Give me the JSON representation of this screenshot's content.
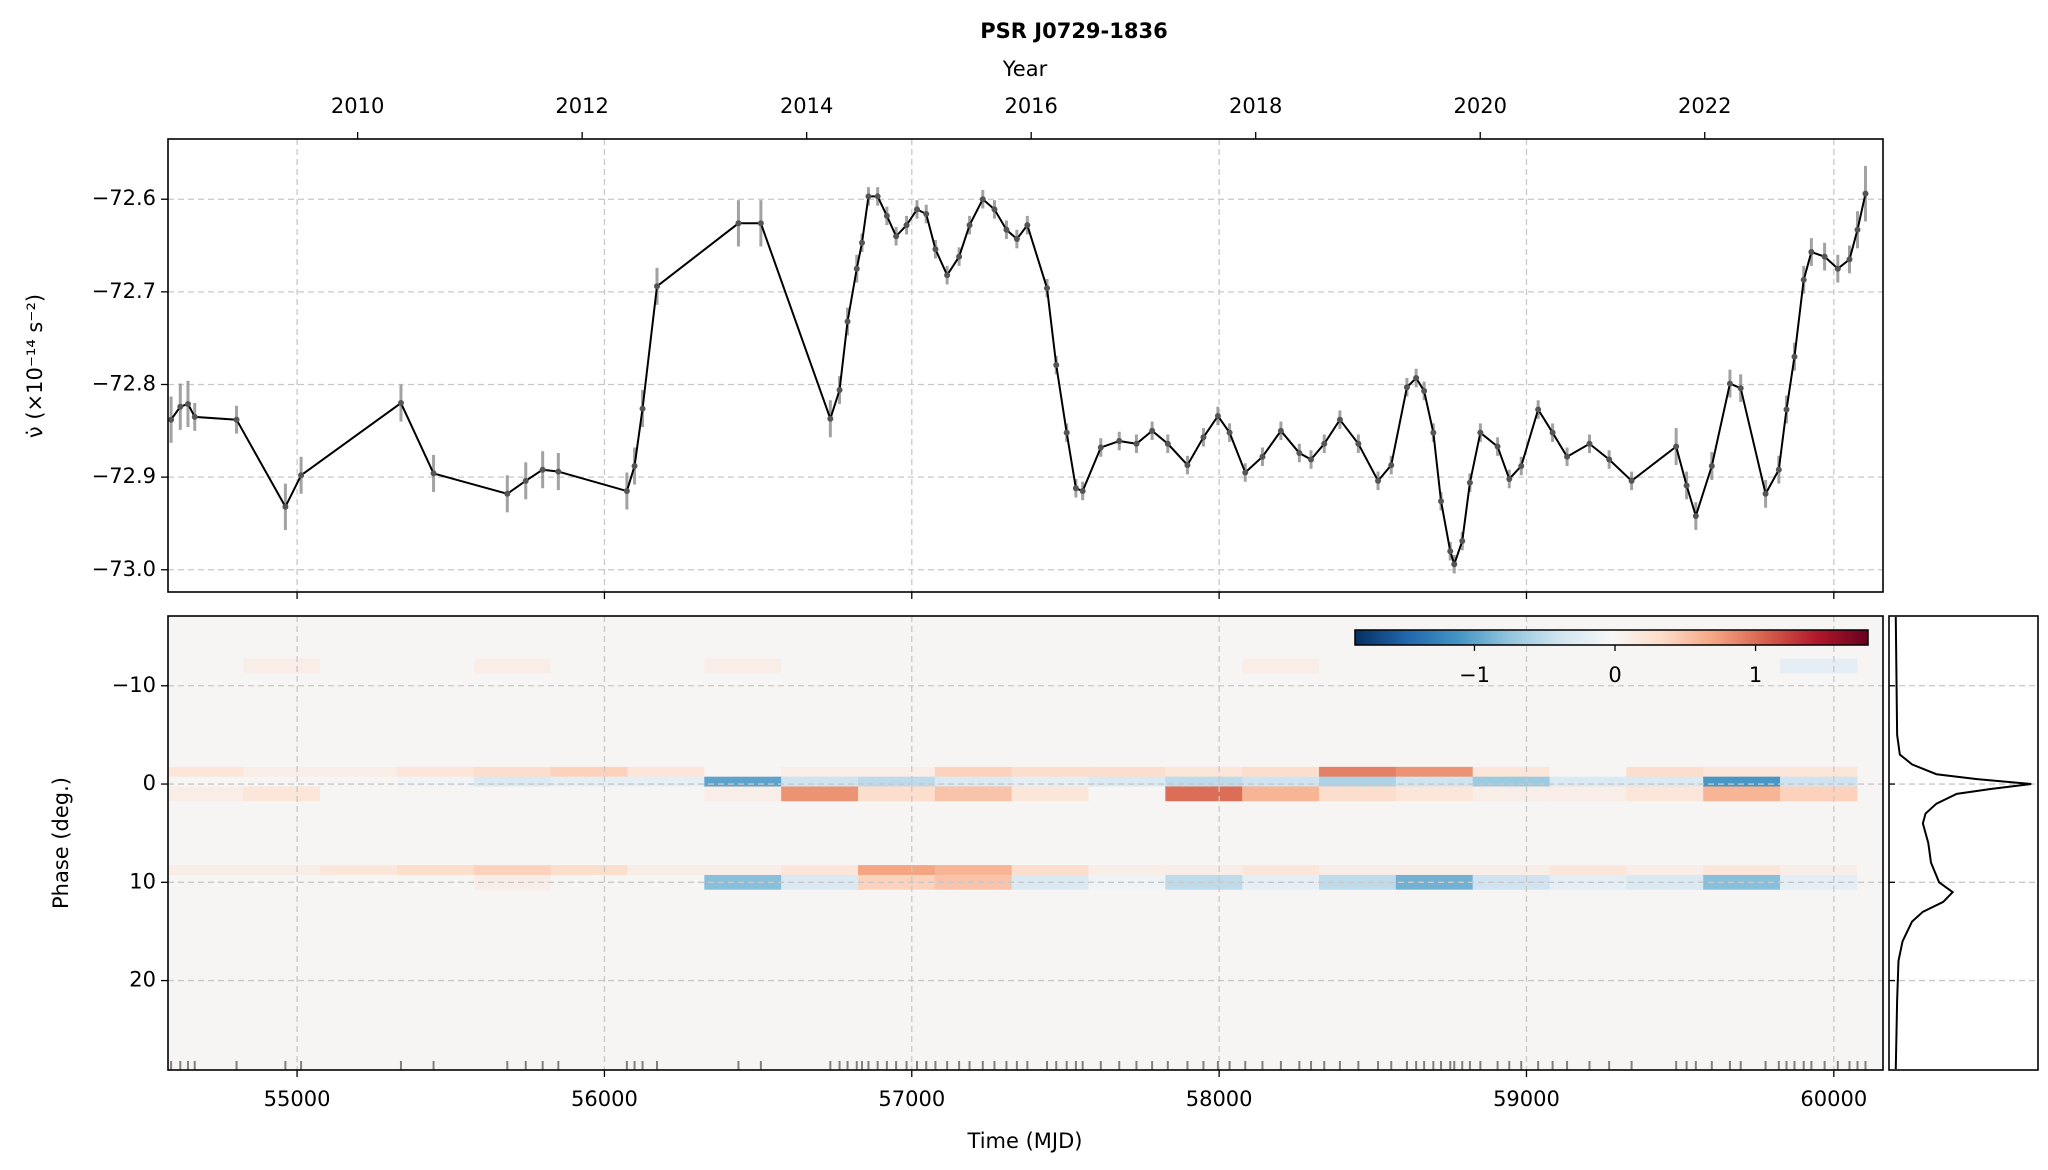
{
  "chart_data": {
    "type": "line",
    "title": "PSR J0729-1836",
    "top_axis_label": "Year",
    "top_ticks": [
      2010,
      2012,
      2014,
      2016,
      2018,
      2020,
      2022
    ],
    "xlabel": "Time (MJD)",
    "ylabel": "ν̇ (×10⁻¹⁴ s⁻²)",
    "xlim": [
      54580,
      60160
    ],
    "xticks": [
      55000,
      56000,
      57000,
      58000,
      59000,
      60000
    ],
    "ylim": [
      -73.024,
      -72.535
    ],
    "yticks": [
      {
        "value": -73.0,
        "label": "−73.0"
      },
      {
        "value": -72.9,
        "label": "−72.9"
      },
      {
        "value": -72.8,
        "label": "−72.8"
      },
      {
        "value": -72.7,
        "label": "−72.7"
      },
      {
        "value": -72.6,
        "label": "−72.6"
      }
    ],
    "grid": true,
    "color": "#000000",
    "errorbar_color": "#8c8c8c",
    "x": [
      54590,
      54620,
      54645,
      54667,
      54803,
      54962,
      55013,
      55338,
      55444,
      55684,
      55744,
      55799,
      55850,
      56073,
      56098,
      56124,
      56171,
      56436,
      56509,
      56735,
      56765,
      56791,
      56821,
      56838,
      56859,
      56889,
      56919,
      56949,
      56983,
      57017,
      57047,
      57077,
      57115,
      57154,
      57188,
      57231,
      57269,
      57308,
      57342,
      57376,
      57440,
      57470,
      57504,
      57534,
      57556,
      57615,
      57675,
      57731,
      57782,
      57833,
      57897,
      57949,
      57996,
      58034,
      58085,
      58141,
      58201,
      58261,
      58299,
      58342,
      58393,
      58453,
      58517,
      58560,
      58611,
      58641,
      58667,
      58697,
      58722,
      58752,
      58765,
      58791,
      58816,
      58850,
      58906,
      58944,
      58983,
      59038,
      59085,
      59132,
      59205,
      59269,
      59342,
      59487,
      59521,
      59551,
      59603,
      59662,
      59697,
      59778,
      59821,
      59846,
      59872,
      59902,
      59927,
      59970,
      60013,
      60051,
      60077,
      60103
    ],
    "values": [
      -72.838,
      -72.824,
      -72.821,
      -72.835,
      -72.838,
      -72.932,
      -72.898,
      -72.82,
      -72.896,
      -72.918,
      -72.904,
      -72.892,
      -72.894,
      -72.915,
      -72.888,
      -72.826,
      -72.694,
      -72.626,
      -72.626,
      -72.837,
      -72.806,
      -72.732,
      -72.675,
      -72.647,
      -72.597,
      -72.597,
      -72.618,
      -72.64,
      -72.628,
      -72.611,
      -72.616,
      -72.654,
      -72.682,
      -72.662,
      -72.628,
      -72.6,
      -72.611,
      -72.633,
      -72.643,
      -72.628,
      -72.696,
      -72.779,
      -72.852,
      -72.912,
      -72.915,
      -72.868,
      -72.861,
      -72.864,
      -72.85,
      -72.864,
      -72.887,
      -72.857,
      -72.834,
      -72.852,
      -72.895,
      -72.878,
      -72.85,
      -72.874,
      -72.881,
      -72.864,
      -72.838,
      -72.864,
      -72.904,
      -72.887,
      -72.803,
      -72.793,
      -72.807,
      -72.852,
      -72.926,
      -72.98,
      -72.994,
      -72.969,
      -72.906,
      -72.852,
      -72.867,
      -72.902,
      -72.888,
      -72.827,
      -72.852,
      -72.878,
      -72.864,
      -72.881,
      -72.904,
      -72.867,
      -72.909,
      -72.942,
      -72.888,
      -72.799,
      -72.804,
      -72.918,
      -72.892,
      -72.827,
      -72.77,
      -72.687,
      -72.657,
      -72.662,
      -72.675,
      -72.665,
      -72.633,
      -72.594
    ],
    "errors": [
      0.025,
      0.025,
      0.025,
      0.015,
      0.015,
      0.025,
      0.02,
      0.02,
      0.02,
      0.02,
      0.02,
      0.02,
      0.02,
      0.02,
      0.02,
      0.02,
      0.02,
      0.025,
      0.025,
      0.02,
      0.015,
      0.015,
      0.015,
      0.01,
      0.01,
      0.01,
      0.01,
      0.01,
      0.01,
      0.01,
      0.01,
      0.01,
      0.01,
      0.01,
      0.01,
      0.01,
      0.01,
      0.01,
      0.01,
      0.01,
      0.01,
      0.01,
      0.01,
      0.01,
      0.01,
      0.01,
      0.01,
      0.01,
      0.01,
      0.01,
      0.01,
      0.01,
      0.01,
      0.01,
      0.01,
      0.01,
      0.01,
      0.01,
      0.01,
      0.01,
      0.01,
      0.01,
      0.01,
      0.01,
      0.01,
      0.01,
      0.01,
      0.01,
      0.01,
      0.01,
      0.01,
      0.01,
      0.01,
      0.01,
      0.01,
      0.01,
      0.01,
      0.01,
      0.01,
      0.01,
      0.01,
      0.01,
      0.01,
      0.02,
      0.015,
      0.015,
      0.015,
      0.015,
      0.015,
      0.015,
      0.015,
      0.015,
      0.015,
      0.015,
      0.015,
      0.015,
      0.015,
      0.015,
      0.02,
      0.03
    ],
    "heatmap": {
      "ylabel": "Phase (deg.)",
      "ylim": [
        -17.1,
        29.1
      ],
      "invert_y": true,
      "yticks": [
        {
          "value": -10,
          "label": "−10"
        },
        0,
        10,
        20
      ],
      "colormap": "RdBu_r",
      "zlim": [
        -1.85,
        1.8
      ],
      "zticks": [
        {
          "value": -1,
          "label": "−1"
        },
        0,
        1
      ],
      "x": [
        54700,
        54950,
        55200,
        55450,
        55700,
        55950,
        56200,
        56450,
        56700,
        56950,
        57200,
        57450,
        57700,
        57950,
        58200,
        58450,
        58700,
        58950,
        59200,
        59450,
        59700,
        59950
      ],
      "x_step": 250,
      "row_height": 1.5,
      "phase": [
        -12,
        -1,
        0,
        1,
        9,
        10
      ],
      "z": [
        [
          0,
          0.1,
          0,
          0,
          0.1,
          0,
          0,
          0.1,
          0,
          0,
          0,
          0,
          0,
          0,
          0.1,
          0,
          0,
          0,
          0,
          0,
          0,
          -0.2
        ],
        [
          0.2,
          0.1,
          0.1,
          0.2,
          0.3,
          0.4,
          0.2,
          0,
          0.1,
          0.1,
          0.4,
          0.3,
          0.3,
          0.2,
          0.3,
          0.9,
          0.8,
          0.2,
          0,
          0.3,
          0.2,
          0.2
        ],
        [
          0,
          0,
          0,
          -0.1,
          -0.3,
          -0.2,
          -0.2,
          -1.0,
          -0.4,
          -0.5,
          -0.3,
          -0.2,
          -0.3,
          -0.5,
          -0.4,
          -0.6,
          -0.4,
          -0.7,
          -0.3,
          -0.3,
          -1.1,
          -0.4
        ],
        [
          0.1,
          0.2,
          0,
          0,
          0,
          0,
          0,
          0.1,
          0.8,
          0.3,
          0.5,
          0.2,
          0,
          1.0,
          0.6,
          0.3,
          0.2,
          0.1,
          0.1,
          0.2,
          0.6,
          0.4
        ],
        [
          0.1,
          0.1,
          0.2,
          0.3,
          0.4,
          0.3,
          0.1,
          0.1,
          0.2,
          0.7,
          0.6,
          0.3,
          0.1,
          0.1,
          0.2,
          0.1,
          0.1,
          0.1,
          0.2,
          0.1,
          0.2,
          0.1
        ],
        [
          0,
          0,
          0,
          0,
          0.1,
          0,
          0,
          -0.8,
          -0.3,
          0.4,
          0.5,
          -0.3,
          -0.1,
          -0.5,
          -0.2,
          -0.5,
          -0.9,
          -0.4,
          -0.2,
          -0.3,
          -0.8,
          -0.2
        ]
      ]
    },
    "profile": {
      "xlim": [
        -0.05,
        1.05
      ],
      "phase": [
        -17,
        -5,
        -3,
        -2,
        -1,
        -0.5,
        0,
        0.5,
        1,
        2,
        3,
        4,
        6,
        8,
        10,
        11,
        12,
        13,
        14,
        16,
        18,
        22,
        29
      ],
      "values": [
        0,
        0.01,
        0.03,
        0.12,
        0.3,
        0.6,
        1.0,
        0.7,
        0.45,
        0.3,
        0.22,
        0.2,
        0.24,
        0.26,
        0.32,
        0.42,
        0.35,
        0.2,
        0.12,
        0.05,
        0.02,
        0.01,
        0
      ]
    }
  }
}
